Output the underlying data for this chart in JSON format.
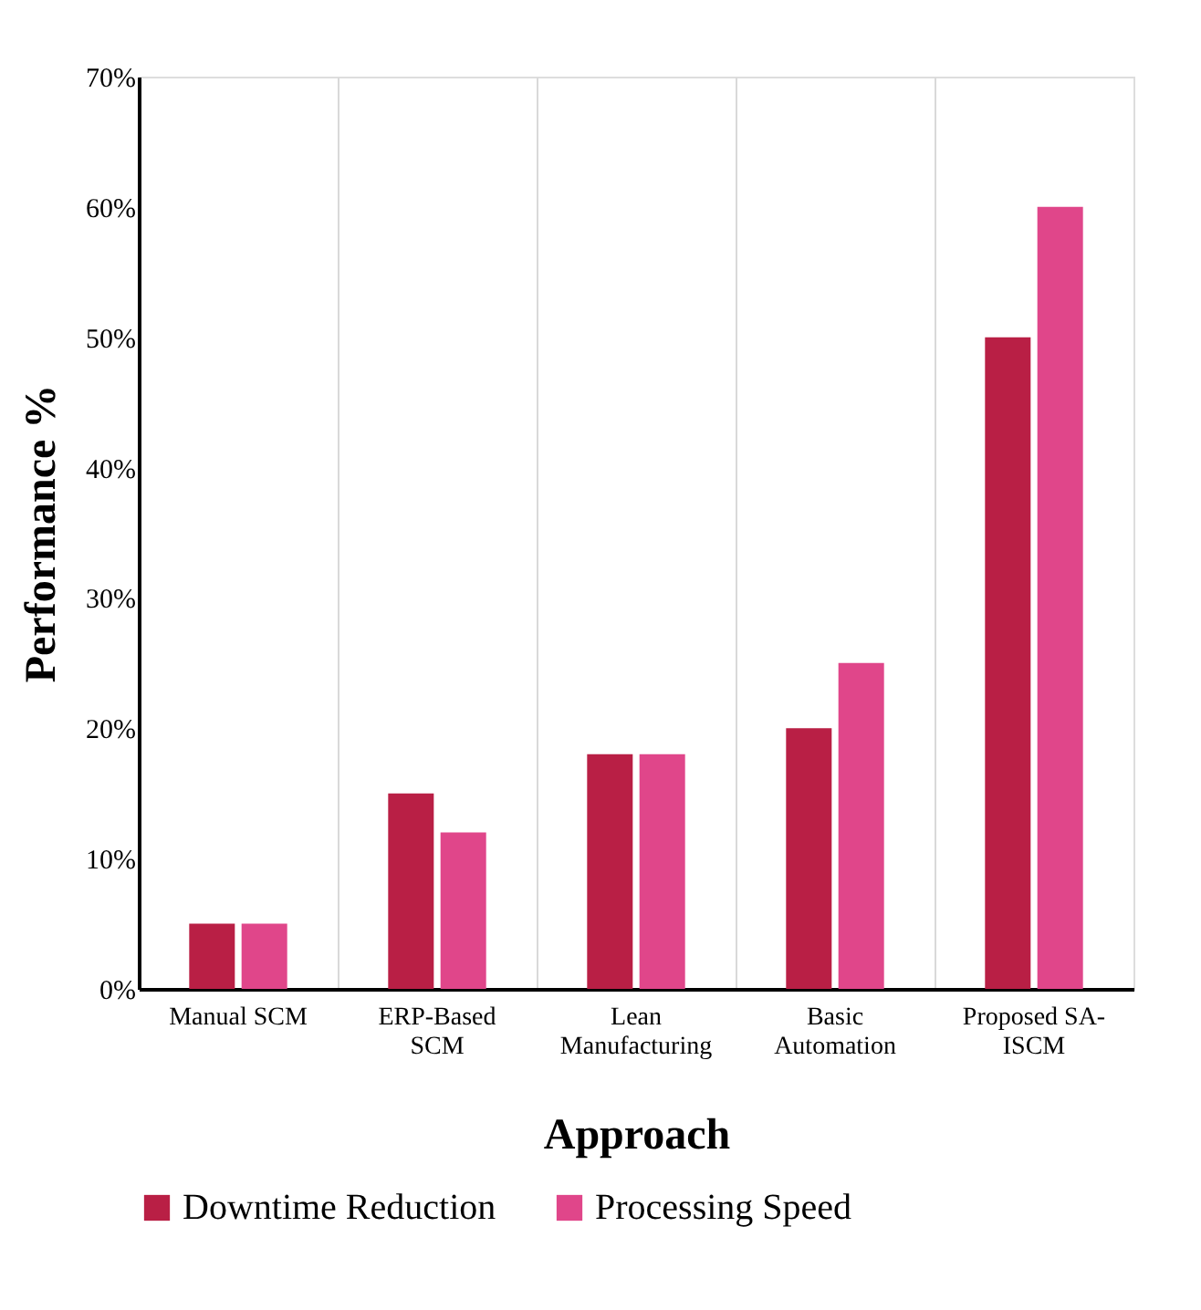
{
  "chart_data": {
    "type": "bar",
    "xlabel": "Approach",
    "ylabel": "Performance %",
    "categories": [
      "Manual SCM",
      "ERP-Based SCM",
      "Lean Manufacturing",
      "Basic Automation",
      "Proposed SA-ISCM"
    ],
    "series": [
      {
        "name": "Downtime Reduction",
        "color": "#b91f45",
        "values": [
          5,
          15,
          18,
          20,
          50
        ]
      },
      {
        "name": "Processing Speed",
        "color": "#e0468a",
        "values": [
          5,
          12,
          18,
          25,
          60
        ]
      }
    ],
    "ylim": [
      0,
      70
    ],
    "yticks": [
      {
        "value": 0,
        "label": "0%"
      },
      {
        "value": 10,
        "label": "10%"
      },
      {
        "value": 20,
        "label": "20%"
      },
      {
        "value": 30,
        "label": "30%"
      },
      {
        "value": 40,
        "label": "40%"
      },
      {
        "value": 50,
        "label": "50%"
      },
      {
        "value": 60,
        "label": "60%"
      },
      {
        "value": 70,
        "label": "70%"
      }
    ],
    "grid": "x",
    "legend": "bottom"
  }
}
